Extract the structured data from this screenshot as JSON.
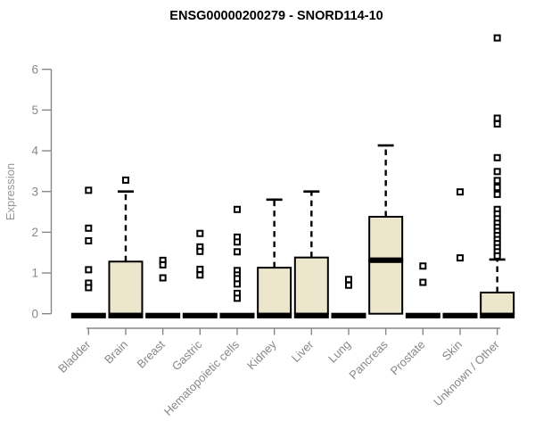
{
  "chart_data": {
    "type": "boxplot",
    "title": "ENSG00000200279 - SNORD114-10",
    "ylabel": "Expression",
    "xlabel": "",
    "ylim": [
      0,
      6.9
    ],
    "yticks": [
      0,
      1,
      2,
      3,
      4,
      5,
      6
    ],
    "grid": false,
    "legend": "none",
    "categories": [
      "Bladder",
      "Brain",
      "Breast",
      "Gastric",
      "Hematopoietic cells",
      "Kidney",
      "Liver",
      "Lung",
      "Pancreas",
      "Prostate",
      "Skin",
      "Unknown / Other"
    ],
    "boxes": [
      {
        "category": "Bladder",
        "q1": 0,
        "median": 0,
        "q3": 0,
        "whisker_low": 0,
        "whisker_high": 0,
        "outliers": [
          3.03,
          2.1,
          1.79,
          1.08,
          0.75,
          0.64
        ]
      },
      {
        "category": "Brain",
        "q1": 0,
        "median": 0,
        "q3": 1.28,
        "whisker_low": 0,
        "whisker_high": 3.0,
        "outliers": [
          3.28
        ]
      },
      {
        "category": "Breast",
        "q1": 0,
        "median": 0,
        "q3": 0,
        "whisker_low": 0,
        "whisker_high": 0,
        "outliers": [
          1.31,
          1.2,
          0.88
        ]
      },
      {
        "category": "Gastric",
        "q1": 0,
        "median": 0,
        "q3": 0,
        "whisker_low": 0,
        "whisker_high": 0,
        "outliers": [
          1.97,
          1.64,
          1.53,
          1.09,
          0.95
        ]
      },
      {
        "category": "Hematopoietic cells",
        "q1": 0,
        "median": 0,
        "q3": 0,
        "whisker_low": 0,
        "whisker_high": 0,
        "outliers": [
          2.56,
          1.88,
          1.76,
          1.52,
          1.06,
          0.95,
          0.86,
          0.73,
          0.5,
          0.38
        ]
      },
      {
        "category": "Kidney",
        "q1": 0,
        "median": 0,
        "q3": 1.13,
        "whisker_low": 0,
        "whisker_high": 2.8,
        "outliers": []
      },
      {
        "category": "Liver",
        "q1": 0,
        "median": 0,
        "q3": 1.38,
        "whisker_low": 0,
        "whisker_high": 3.0,
        "outliers": []
      },
      {
        "category": "Lung",
        "q1": 0,
        "median": 0,
        "q3": 0,
        "whisker_low": 0,
        "whisker_high": 0,
        "outliers": [
          0.84,
          0.7
        ]
      },
      {
        "category": "Pancreas",
        "q1": 0,
        "median": 1.36,
        "q3": 2.38,
        "whisker_low": 0,
        "whisker_high": 4.13,
        "outliers": []
      },
      {
        "category": "Prostate",
        "q1": 0,
        "median": 0,
        "q3": 0,
        "whisker_low": 0,
        "whisker_high": 0,
        "outliers": [
          1.17,
          0.77
        ]
      },
      {
        "category": "Skin",
        "q1": 0,
        "median": 0,
        "q3": 0,
        "whisker_low": 0,
        "whisker_high": 0,
        "outliers": [
          2.99,
          1.37
        ]
      },
      {
        "category": "Unknown / Other",
        "q1": 0,
        "median": 0,
        "q3": 0.52,
        "whisker_low": 0,
        "whisker_high": 1.33,
        "outliers": [
          6.77,
          4.8,
          4.66,
          3.83,
          3.49,
          3.27,
          3.1,
          2.93,
          2.56,
          2.45,
          2.33,
          2.22,
          2.12,
          2.02,
          1.92,
          1.82,
          1.72,
          1.62,
          1.52,
          1.42
        ]
      }
    ],
    "style": {
      "box_fill": "#ece7cc",
      "box_stroke": "#000000",
      "median_color": "#000000",
      "whisker_color": "#000000",
      "outlier_fill": "#ffffff",
      "outlier_stroke": "#000000",
      "axis_color": "#878787",
      "tick_label_color": "#878787",
      "ylabel_color": "#969696",
      "title_color": "#000000",
      "background": "#ffffff"
    }
  }
}
